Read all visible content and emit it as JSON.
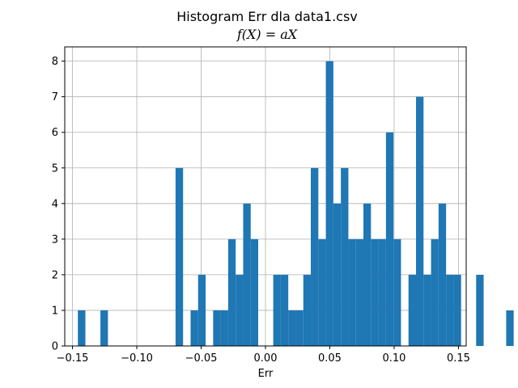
{
  "chart_data": {
    "type": "bar",
    "title": "Histogram Err dla data1.csv",
    "subtitle": "f(X) = aX",
    "xlabel": "Err",
    "ylabel": "",
    "grid": true,
    "bar_color": "#1f77b4",
    "xlim": [
      -0.156,
      0.156
    ],
    "ylim": [
      0,
      8.4
    ],
    "xticks": [
      -0.15,
      -0.1,
      -0.05,
      0.0,
      0.05,
      0.1,
      0.15
    ],
    "xtick_labels": [
      "−0.15",
      "−0.10",
      "−0.05",
      "0.00",
      "0.05",
      "0.10",
      "0.15"
    ],
    "yticks": [
      0,
      1,
      2,
      3,
      4,
      5,
      6,
      7,
      8
    ],
    "ytick_labels": [
      "0",
      "1",
      "2",
      "3",
      "4",
      "5",
      "6",
      "7",
      "8"
    ],
    "bin_start": -0.1458,
    "bin_width": 0.00584,
    "counts": [
      1,
      0,
      0,
      1,
      0,
      0,
      0,
      0,
      0,
      0,
      0,
      0,
      0,
      5,
      0,
      1,
      2,
      0,
      1,
      1,
      3,
      2,
      4,
      3,
      0,
      0,
      2,
      2,
      1,
      1,
      2,
      5,
      3,
      8,
      4,
      5,
      3,
      3,
      4,
      3,
      3,
      6,
      3,
      0,
      2,
      7,
      2,
      3,
      4,
      2,
      2,
      0,
      0,
      2,
      0,
      0,
      0,
      1,
      0,
      0,
      0,
      0,
      0,
      0,
      0,
      0,
      0,
      0,
      0,
      1
    ]
  }
}
